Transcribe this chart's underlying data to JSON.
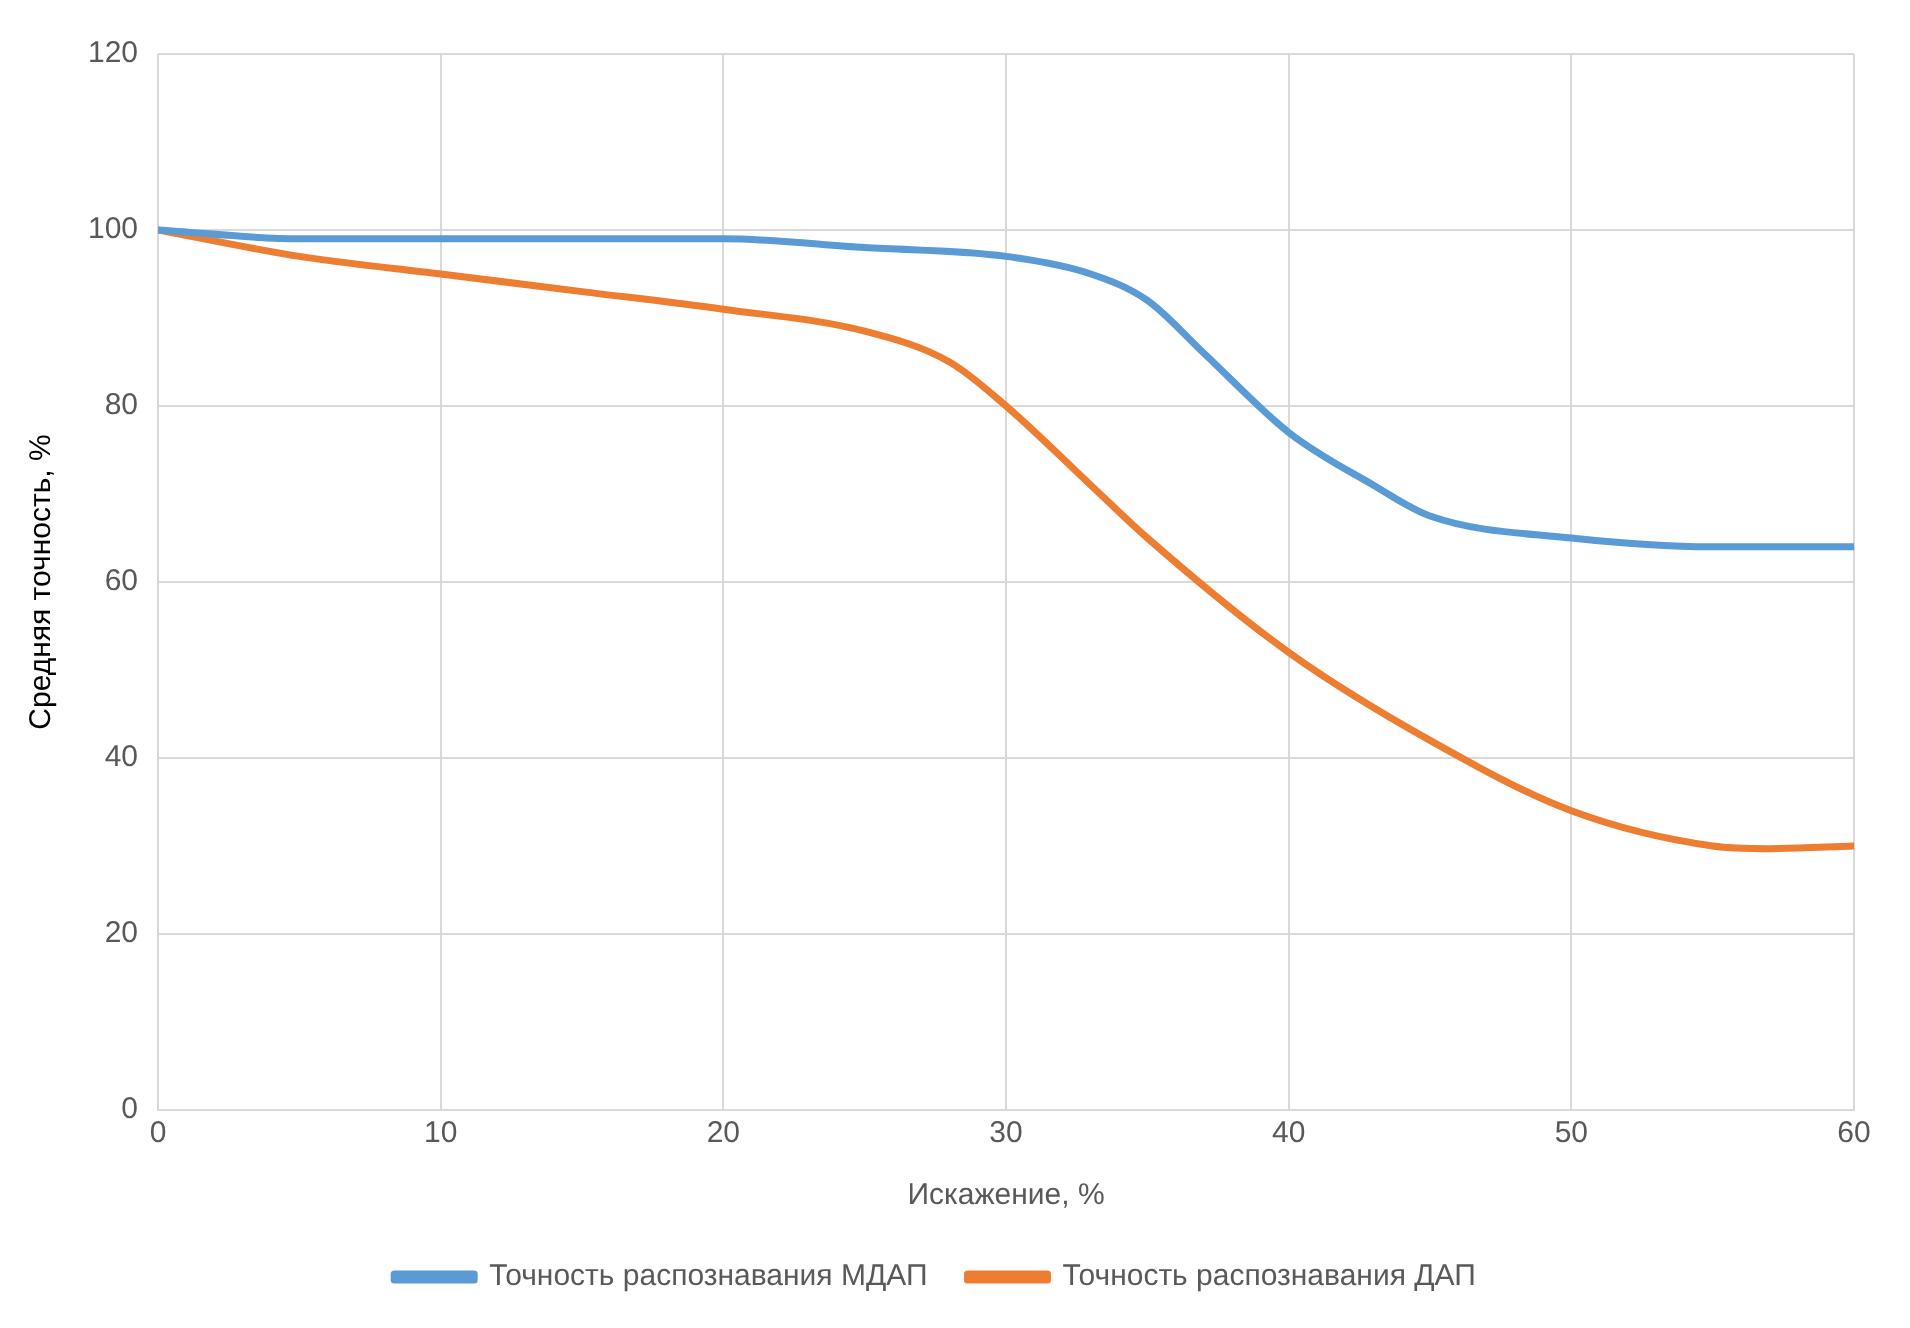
{
  "chart_data": {
    "type": "line",
    "xlabel": "Искажение, %",
    "ylabel": "Средняя точность, %",
    "series": [
      {
        "name": "Точность распознавания МДАП",
        "color": "#5b9bd5",
        "x": [
          0,
          5,
          10,
          15,
          20,
          25,
          30,
          33,
          35,
          37,
          40,
          43,
          45,
          50,
          55,
          60
        ],
        "values": [
          100,
          99,
          99,
          99,
          99,
          98,
          97,
          95,
          92,
          86,
          77,
          71,
          67.5,
          65,
          64,
          64
        ]
      },
      {
        "name": "Точность распознавания ДАП",
        "color": "#ed7d31",
        "x": [
          0,
          5,
          10,
          15,
          20,
          25,
          28,
          30,
          33,
          35,
          40,
          45,
          50,
          55,
          57,
          60
        ],
        "values": [
          100,
          97,
          95,
          93,
          91,
          88.5,
          85,
          80,
          71,
          65,
          52,
          42,
          34,
          30,
          29.7,
          30
        ]
      }
    ],
    "xlim": [
      0,
      60
    ],
    "xticks": [
      0,
      10,
      20,
      30,
      40,
      50,
      60
    ],
    "ylim": [
      0,
      120
    ],
    "yticks": [
      0,
      20,
      40,
      60,
      80,
      100,
      120
    ],
    "grid": true,
    "legend": "bottom",
    "marker": "none",
    "line_style": "solid"
  }
}
